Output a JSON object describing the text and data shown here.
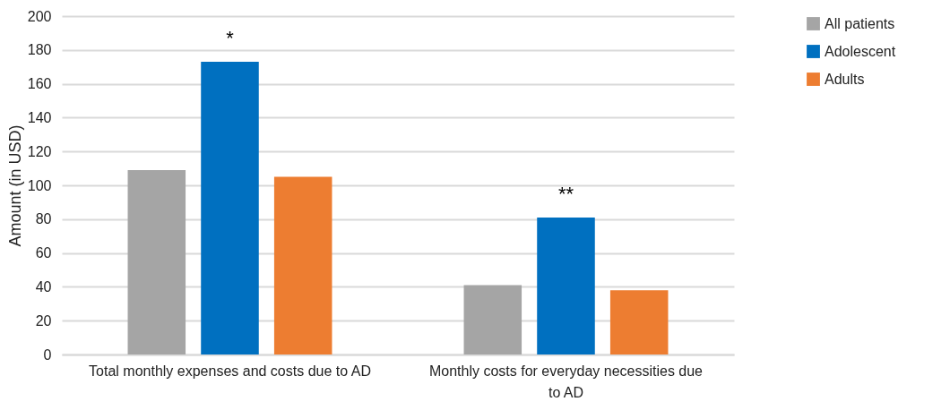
{
  "chart_data": {
    "type": "bar",
    "ylabel": "Amount (in USD)",
    "categories": [
      "Total monthly expenses and costs due to AD",
      "Monthly costs for everyday necessities due to AD"
    ],
    "series": [
      {
        "name": "All patients",
        "color": "#a5a5a5",
        "values": [
          109,
          41
        ]
      },
      {
        "name": "Adolescent",
        "color": "#0070c0",
        "values": [
          173,
          81
        ]
      },
      {
        "name": "Adults",
        "color": "#ed7d31",
        "values": [
          105,
          38
        ]
      }
    ],
    "ylim": [
      0,
      200
    ],
    "yticks": [
      0,
      20,
      40,
      60,
      80,
      100,
      120,
      140,
      160,
      180,
      200
    ],
    "grid": "y",
    "legend": "right",
    "annotations": [
      "*",
      "**"
    ]
  }
}
